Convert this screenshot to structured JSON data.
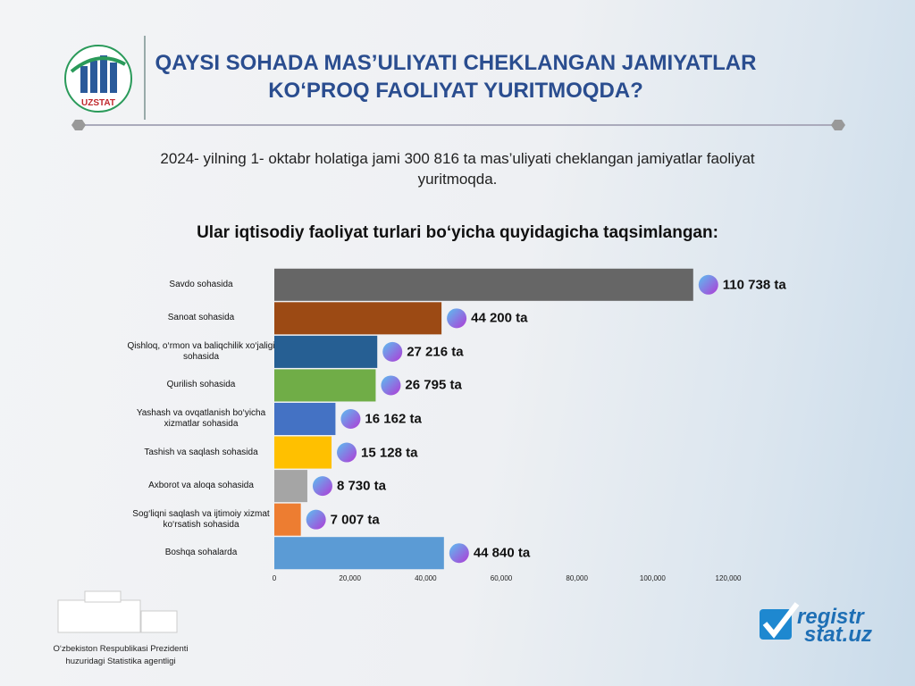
{
  "header": {
    "title": "QAYSI SOHADA MAS’ULIYATI CHEKLANGAN JAMIYATLAR KO‘PROQ FAOLIYAT YURITMOQDA?",
    "logo": "UZSTAT",
    "text": "2024- yilning 1- oktabr holatiga jami 300 816 ta mas’uliyati cheklangan jamiyatlar faoliyat yuritmoqda.",
    "heading": "Ular iqtisodiy faoliyat turlari bo‘yicha quyidagicha taqsimlangan:"
  },
  "chart_data": {
    "type": "hbar",
    "categories": [
      "Savdo sohasida",
      "Sanoat sohasida",
      "Qishloq, o‘rmon va baliqchilik xo‘jaligi sohasida",
      "Qurilish sohasida",
      "Yashash va ovqatlanish bo‘yicha xizmatlar sohasida",
      "Tashish va saqlash sohasida",
      "Axborot va aloqa sohasida",
      "Sog‘liqni saqlash va ijtimoiy xizmat ko‘rsatish sohasida",
      "Boshqa sohalarda"
    ],
    "values": [
      110738,
      44200,
      27216,
      26795,
      16162,
      15128,
      8730,
      7007,
      44840
    ],
    "value_labels": [
      "110 738 ta",
      "44 200 ta",
      "27 216 ta",
      "26 795 ta",
      "16 162 ta",
      "15 128 ta",
      "8 730 ta",
      "7 007 ta",
      "44 840 ta"
    ],
    "colors": [
      "#666666",
      "#9c4a14",
      "#265f93",
      "#70ad47",
      "#4472c4",
      "#ffc000",
      "#a5a5a5",
      "#ed7d31",
      "#5b9bd5"
    ],
    "xlim": [
      0,
      120000
    ],
    "xticks": [
      0,
      {
        "value": 20000,
        "label": "20,000"
      },
      {
        "value": 40000,
        "label": "40,000"
      },
      {
        "value": 60000,
        "label": "60,000"
      },
      {
        "value": 80000,
        "label": "80,000"
      },
      {
        "value": 100000,
        "label": "100,000"
      },
      {
        "value": 120000,
        "label": "120,000"
      }
    ]
  },
  "footer": {
    "agency": "O‘zbekiston Respublikasi Prezidenti huzuridagi Statistika agentligi",
    "site_top": "registr",
    "site_bottom": "stat.uz"
  }
}
